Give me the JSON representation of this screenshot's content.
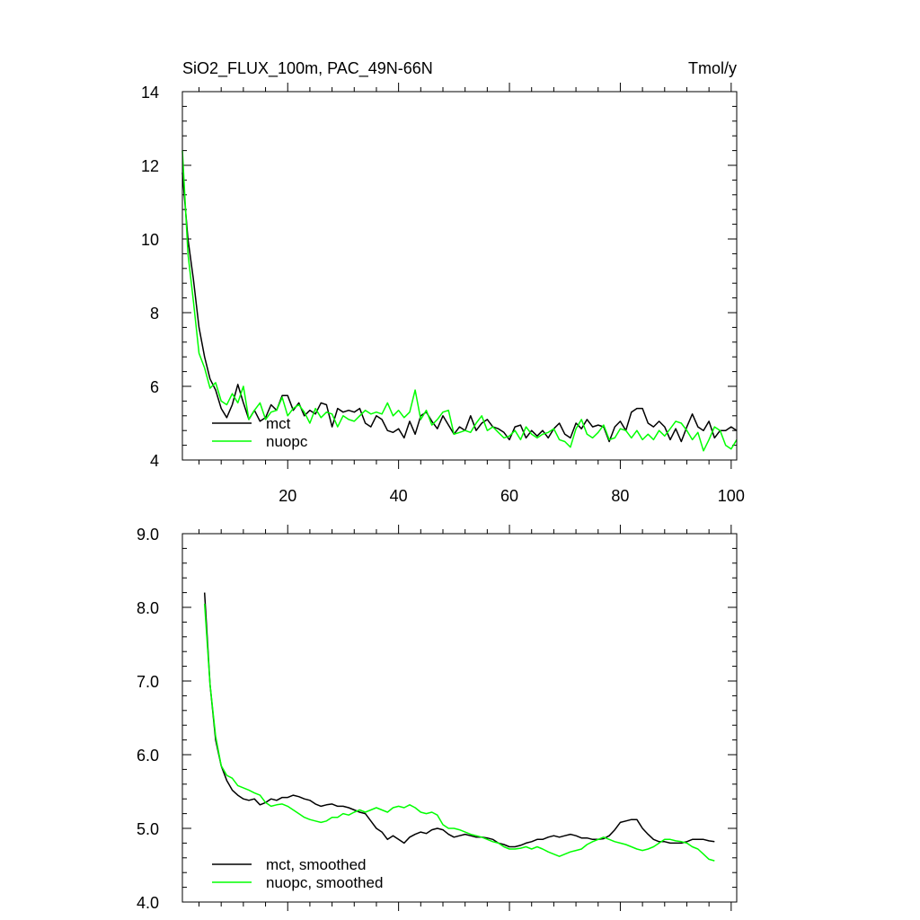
{
  "chart_data": [
    {
      "type": "line",
      "title": "SiO2_FLUX_100m, PAC_49N-66N",
      "units": "Tmol/y",
      "xlim": [
        1,
        101
      ],
      "ylim": [
        4,
        14
      ],
      "xticks": [
        20,
        40,
        60,
        80,
        100
      ],
      "xtick_labels": [
        "20",
        "40",
        "60",
        "80",
        "100"
      ],
      "yticks": [
        4,
        6,
        8,
        10,
        12,
        14
      ],
      "ytick_labels": [
        "4",
        "6",
        "8",
        "10",
        "12",
        "14"
      ],
      "grid": false,
      "legend": "bottom-left",
      "series": [
        {
          "name": "mct",
          "color": "#000000",
          "x": [
            1,
            2,
            3,
            4,
            5,
            6,
            7,
            8,
            9,
            10,
            11,
            12,
            13,
            14,
            15,
            16,
            17,
            18,
            19,
            20,
            21,
            22,
            23,
            24,
            25,
            26,
            27,
            28,
            29,
            30,
            31,
            32,
            33,
            34,
            35,
            36,
            37,
            38,
            39,
            40,
            41,
            42,
            43,
            44,
            45,
            46,
            47,
            48,
            49,
            50,
            51,
            52,
            53,
            54,
            55,
            56,
            57,
            58,
            59,
            60,
            61,
            62,
            63,
            64,
            65,
            66,
            67,
            68,
            69,
            70,
            71,
            72,
            73,
            74,
            75,
            76,
            77,
            78,
            79,
            80,
            81,
            82,
            83,
            84,
            85,
            86,
            87,
            88,
            89,
            90,
            91,
            92,
            93,
            94,
            95,
            96,
            97,
            98,
            99,
            100,
            101
          ],
          "values": [
            11.8,
            10.0,
            8.9,
            7.6,
            6.8,
            6.2,
            5.9,
            5.4,
            5.15,
            5.5,
            6.05,
            5.55,
            5.1,
            5.35,
            5.05,
            5.15,
            5.5,
            5.35,
            5.75,
            5.75,
            5.35,
            5.55,
            5.2,
            5.35,
            5.25,
            5.55,
            5.5,
            4.9,
            5.4,
            5.3,
            5.35,
            5.3,
            5.4,
            5.0,
            4.9,
            5.2,
            5.1,
            4.8,
            4.75,
            4.85,
            4.6,
            5.05,
            4.7,
            5.2,
            5.3,
            5.05,
            4.85,
            5.2,
            4.95,
            4.7,
            4.9,
            4.8,
            5.2,
            4.8,
            5.0,
            5.1,
            4.9,
            4.85,
            4.75,
            4.55,
            4.9,
            4.95,
            4.6,
            4.8,
            4.65,
            4.8,
            4.6,
            4.85,
            5.0,
            4.7,
            4.6,
            5.0,
            4.85,
            5.1,
            4.9,
            4.95,
            4.9,
            4.5,
            4.9,
            5.05,
            4.8,
            5.3,
            5.4,
            5.4,
            5.0,
            4.9,
            5.05,
            4.9,
            4.55,
            4.85,
            4.5,
            4.9,
            5.25,
            4.9,
            4.8,
            5.05,
            4.6,
            4.8,
            4.8,
            4.9,
            4.8
          ]
        },
        {
          "name": "nuopc",
          "color": "#00ff00",
          "x": [
            1,
            2,
            3,
            4,
            5,
            6,
            7,
            8,
            9,
            10,
            11,
            12,
            13,
            14,
            15,
            16,
            17,
            18,
            19,
            20,
            21,
            22,
            23,
            24,
            25,
            26,
            27,
            28,
            29,
            30,
            31,
            32,
            33,
            34,
            35,
            36,
            37,
            38,
            39,
            40,
            41,
            42,
            43,
            44,
            45,
            46,
            47,
            48,
            49,
            50,
            51,
            52,
            53,
            54,
            55,
            56,
            57,
            58,
            59,
            60,
            61,
            62,
            63,
            64,
            65,
            66,
            67,
            68,
            69,
            70,
            71,
            72,
            73,
            74,
            75,
            76,
            77,
            78,
            79,
            80,
            81,
            82,
            83,
            84,
            85,
            86,
            87,
            88,
            89,
            90,
            91,
            92,
            93,
            94,
            95,
            96,
            97,
            98,
            99,
            100,
            101
          ],
          "values": [
            12.4,
            9.6,
            8.3,
            6.9,
            6.5,
            5.95,
            6.1,
            5.6,
            5.5,
            5.8,
            5.55,
            6.0,
            5.1,
            5.35,
            5.55,
            5.1,
            5.3,
            5.35,
            5.7,
            5.2,
            5.4,
            5.5,
            5.3,
            5.0,
            5.4,
            5.15,
            5.3,
            5.25,
            4.9,
            5.2,
            5.1,
            5.05,
            5.2,
            5.35,
            5.25,
            5.3,
            5.25,
            5.55,
            5.2,
            5.35,
            5.15,
            5.3,
            5.9,
            5.1,
            5.35,
            4.95,
            5.1,
            5.3,
            5.35,
            4.7,
            4.75,
            4.8,
            4.75,
            5.0,
            5.2,
            4.8,
            4.9,
            4.75,
            4.6,
            4.65,
            4.8,
            4.55,
            4.9,
            4.7,
            4.6,
            4.7,
            4.75,
            4.85,
            4.55,
            4.5,
            4.35,
            4.85,
            5.1,
            4.7,
            4.6,
            4.75,
            4.95,
            4.55,
            4.6,
            4.85,
            4.8,
            4.6,
            4.8,
            4.55,
            4.7,
            4.55,
            4.8,
            4.65,
            4.85,
            5.05,
            5.0,
            4.8,
            4.55,
            4.75,
            4.25,
            4.55,
            4.9,
            4.8,
            4.4,
            4.3,
            4.55
          ]
        }
      ]
    },
    {
      "type": "line",
      "title": "",
      "xlim": [
        1,
        101
      ],
      "ylim": [
        4.0,
        9.0
      ],
      "xticks": [
        20,
        40,
        60,
        80,
        100
      ],
      "xtick_labels": [],
      "yticks": [
        4.0,
        5.0,
        6.0,
        7.0,
        8.0,
        9.0
      ],
      "ytick_labels": [
        "4.0",
        "5.0",
        "6.0",
        "7.0",
        "8.0",
        "9.0"
      ],
      "grid": false,
      "legend": "bottom-left",
      "series": [
        {
          "name": "mct, smoothed",
          "color": "#000000",
          "x": [
            5,
            6,
            7,
            8,
            9,
            10,
            11,
            12,
            13,
            14,
            15,
            16,
            17,
            18,
            19,
            20,
            21,
            22,
            23,
            24,
            25,
            26,
            27,
            28,
            29,
            30,
            31,
            32,
            33,
            34,
            35,
            36,
            37,
            38,
            39,
            40,
            41,
            42,
            43,
            44,
            45,
            46,
            47,
            48,
            49,
            50,
            51,
            52,
            53,
            54,
            55,
            56,
            57,
            58,
            59,
            60,
            61,
            62,
            63,
            64,
            65,
            66,
            67,
            68,
            69,
            70,
            71,
            72,
            73,
            74,
            75,
            76,
            77,
            78,
            79,
            80,
            81,
            82,
            83,
            84,
            85,
            86,
            87,
            88,
            89,
            90,
            91,
            92,
            93,
            94,
            95,
            96,
            97
          ],
          "values": [
            8.2,
            6.95,
            6.2,
            5.85,
            5.65,
            5.52,
            5.45,
            5.4,
            5.38,
            5.4,
            5.32,
            5.35,
            5.4,
            5.38,
            5.42,
            5.42,
            5.45,
            5.43,
            5.4,
            5.38,
            5.33,
            5.3,
            5.32,
            5.33,
            5.3,
            5.3,
            5.28,
            5.25,
            5.22,
            5.2,
            5.1,
            5.0,
            4.95,
            4.85,
            4.9,
            4.85,
            4.8,
            4.88,
            4.92,
            4.95,
            4.93,
            4.98,
            5.0,
            4.98,
            4.92,
            4.88,
            4.9,
            4.92,
            4.9,
            4.88,
            4.88,
            4.87,
            4.85,
            4.8,
            4.78,
            4.75,
            4.75,
            4.77,
            4.8,
            4.82,
            4.85,
            4.85,
            4.88,
            4.9,
            4.88,
            4.9,
            4.92,
            4.9,
            4.87,
            4.87,
            4.85,
            4.85,
            4.86,
            4.9,
            4.98,
            5.08,
            5.1,
            5.12,
            5.12,
            5.0,
            4.92,
            4.85,
            4.82,
            4.82,
            4.8,
            4.8,
            4.8,
            4.82,
            4.85,
            4.85,
            4.85,
            4.83,
            4.82
          ]
        },
        {
          "name": "nuopc, smoothed",
          "color": "#00ff00",
          "x": [
            5,
            6,
            7,
            8,
            9,
            10,
            11,
            12,
            13,
            14,
            15,
            16,
            17,
            18,
            19,
            20,
            21,
            22,
            23,
            24,
            25,
            26,
            27,
            28,
            29,
            30,
            31,
            32,
            33,
            34,
            35,
            36,
            37,
            38,
            39,
            40,
            41,
            42,
            43,
            44,
            45,
            46,
            47,
            48,
            49,
            50,
            51,
            52,
            53,
            54,
            55,
            56,
            57,
            58,
            59,
            60,
            61,
            62,
            63,
            64,
            65,
            66,
            67,
            68,
            69,
            70,
            71,
            72,
            73,
            74,
            75,
            76,
            77,
            78,
            79,
            80,
            81,
            82,
            83,
            84,
            85,
            86,
            87,
            88,
            89,
            90,
            91,
            92,
            93,
            94,
            95,
            96,
            97
          ],
          "values": [
            8.05,
            6.95,
            6.25,
            5.85,
            5.72,
            5.68,
            5.58,
            5.55,
            5.52,
            5.48,
            5.45,
            5.35,
            5.3,
            5.32,
            5.33,
            5.3,
            5.25,
            5.2,
            5.15,
            5.12,
            5.1,
            5.08,
            5.1,
            5.15,
            5.15,
            5.2,
            5.18,
            5.22,
            5.25,
            5.22,
            5.25,
            5.28,
            5.25,
            5.22,
            5.28,
            5.3,
            5.28,
            5.32,
            5.28,
            5.22,
            5.2,
            5.22,
            5.18,
            5.05,
            5.0,
            5.0,
            4.98,
            4.95,
            4.92,
            4.9,
            4.88,
            4.85,
            4.82,
            4.8,
            4.75,
            4.72,
            4.72,
            4.73,
            4.75,
            4.72,
            4.75,
            4.72,
            4.68,
            4.65,
            4.62,
            4.65,
            4.68,
            4.7,
            4.72,
            4.78,
            4.82,
            4.85,
            4.88,
            4.85,
            4.82,
            4.8,
            4.78,
            4.75,
            4.72,
            4.7,
            4.72,
            4.75,
            4.8,
            4.85,
            4.85,
            4.83,
            4.82,
            4.8,
            4.75,
            4.72,
            4.65,
            4.58,
            4.56
          ]
        }
      ]
    }
  ]
}
